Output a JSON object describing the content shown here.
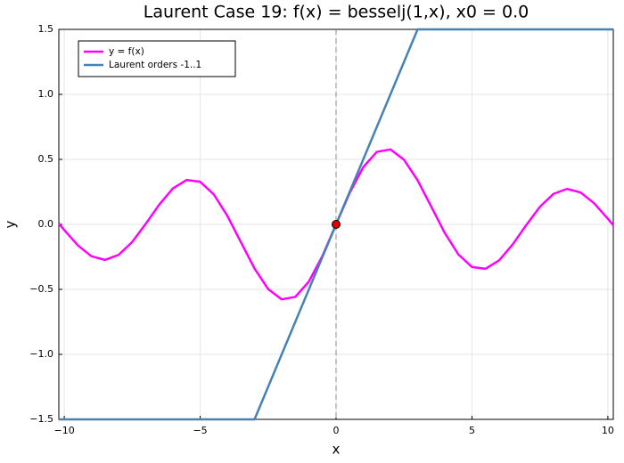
{
  "chart_data": {
    "type": "line",
    "title": "Laurent Case 19: f(x) = besselj(1,x), x0 = 0.0",
    "xlabel": "x",
    "ylabel": "y",
    "x": [
      -10.2,
      -10,
      -9.5,
      -9,
      -8.5,
      -8,
      -7.5,
      -7,
      -6.5,
      -6,
      -5.5,
      -5,
      -4.5,
      -4,
      -3.5,
      -3,
      -2.5,
      -2,
      -1.5,
      -1,
      -0.5,
      0,
      0.5,
      1,
      1.5,
      2,
      2.5,
      3,
      3.5,
      4,
      4.5,
      5,
      5.5,
      6,
      6.5,
      7,
      7.5,
      8,
      8.5,
      9,
      9.5,
      10,
      10.2
    ],
    "series": [
      {
        "name": "y = f(x)",
        "color": "#ff00ff",
        "values": [
          0.0066,
          -0.0435,
          -0.1613,
          -0.2453,
          -0.2731,
          -0.2346,
          -0.1352,
          0.0047,
          0.1538,
          0.2767,
          0.3414,
          0.3276,
          0.2311,
          0.066,
          -0.1374,
          -0.3391,
          -0.4971,
          -0.5767,
          -0.5579,
          -0.4401,
          -0.2423,
          0,
          0.2423,
          0.4401,
          0.5579,
          0.5767,
          0.4971,
          0.3391,
          0.1374,
          -0.066,
          -0.2311,
          -0.3276,
          -0.3414,
          -0.2767,
          -0.1538,
          -0.0047,
          0.1352,
          0.2346,
          0.2731,
          0.2453,
          0.1613,
          0.0435,
          -0.0066
        ]
      },
      {
        "name": "Laurent orders -1..1",
        "color": "#4682b4",
        "values": [
          -1.5,
          -1.5,
          -1.5,
          -1.5,
          -1.5,
          -1.5,
          -1.5,
          -1.5,
          -1.5,
          -1.5,
          -1.5,
          -1.5,
          -1.5,
          -1.5,
          -1.5,
          -1.5,
          -1.25,
          -1,
          -0.75,
          -0.5,
          -0.25,
          0,
          0.25,
          0.5,
          0.75,
          1,
          1.25,
          1.5,
          1.5,
          1.5,
          1.5,
          1.5,
          1.5,
          1.5,
          1.5,
          1.5,
          1.5,
          1.5,
          1.5,
          1.5,
          1.5,
          1.5,
          1.5
        ]
      }
    ],
    "marker": {
      "x": 0,
      "y": 0,
      "color": "#e00000"
    },
    "vline": 0,
    "xlim": [
      -10.2,
      10.2
    ],
    "ylim": [
      -1.5,
      1.5
    ],
    "xticks": [
      {
        "value": -10,
        "label": "−10"
      },
      {
        "value": -5,
        "label": "−5"
      },
      0,
      5,
      10
    ],
    "yticks": [
      {
        "value": -1.5,
        "label": "−1.5"
      },
      {
        "value": -1,
        "label": "−1.0"
      },
      {
        "value": -0.5,
        "label": "−0.5"
      },
      {
        "value": 0,
        "label": "0.0"
      },
      {
        "value": 0.5,
        "label": "0.5"
      },
      {
        "value": 1,
        "label": "1.0"
      },
      {
        "value": 1.5,
        "label": "1.5"
      }
    ],
    "grid": true,
    "legend": "top-left"
  }
}
